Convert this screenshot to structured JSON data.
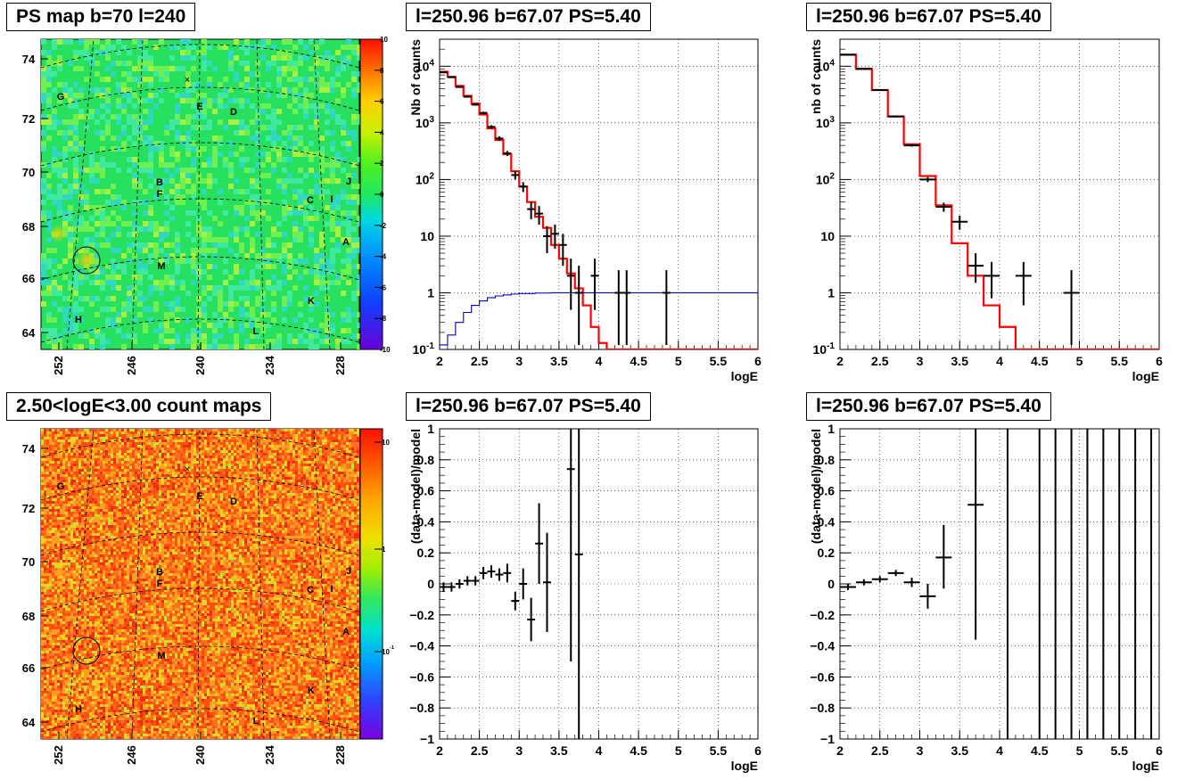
{
  "titles": {
    "map_top": "PS map b=70 l=240",
    "map_bottom": "2.50<logE<3.00 count maps",
    "spec1": "l=250.96 b=67.07 PS=5.40",
    "spec2": "l=250.96 b=67.07 PS=5.40",
    "res1": "l=250.96 b=67.07 PS=5.40",
    "res2": "l=250.96 b=67.07 PS=5.40"
  },
  "colors": {
    "data": "#000000",
    "model": "#ff0000",
    "exposure": "#0000cc",
    "grid": "#000000"
  },
  "map": {
    "lat_ticks": [
      "74",
      "72",
      "70",
      "68",
      "66",
      "64"
    ],
    "lon_ticks": [
      "252",
      "246",
      "240",
      "234",
      "228"
    ],
    "sources": [
      "G",
      "E",
      "D",
      "B",
      "F",
      "C",
      "I",
      "J",
      "A",
      "M",
      "K",
      "H",
      "L"
    ],
    "circle_label": "",
    "palette_top_ticks": [
      "10",
      "8",
      "6",
      "4",
      "2",
      "0",
      "-2",
      "-4",
      "-6",
      "-8",
      "-10"
    ],
    "palette_bottom_ticks": [
      "10",
      "1",
      "10^-1"
    ]
  },
  "chart_data": [
    {
      "type": "line",
      "panel": "spec1",
      "xlabel": "logE",
      "ylabel": "Nb of counts",
      "xlim": [
        2,
        6
      ],
      "ylim": [
        0.1,
        30000
      ],
      "yscale": "log",
      "grid": true,
      "xticks": [
        "2",
        "2.5",
        "3",
        "3.5",
        "4",
        "4.5",
        "5",
        "5.5",
        "6"
      ],
      "yticks": [
        "10^-1",
        "1",
        "10",
        "10^2",
        "10^3",
        "10^4"
      ],
      "series": [
        {
          "role": "model",
          "style": "step",
          "edges": [
            2,
            2.1,
            2.2,
            2.3,
            2.4,
            2.5,
            2.6,
            2.7,
            2.8,
            2.9,
            3.0,
            3.1,
            3.2,
            3.3,
            3.4,
            3.5,
            3.6,
            3.7,
            3.8,
            3.9,
            4.0,
            4.1,
            6.0
          ],
          "values": [
            8000,
            6500,
            4500,
            3000,
            2200,
            1400,
            800,
            500,
            280,
            140,
            75,
            40,
            22,
            14,
            7,
            4,
            2.2,
            1.2,
            0.6,
            0.25,
            0.13,
            0.1
          ]
        },
        {
          "role": "exposure",
          "style": "step",
          "edges": [
            2,
            2.1,
            2.2,
            2.3,
            2.4,
            2.5,
            2.6,
            2.7,
            2.8,
            2.9,
            3.0,
            3.2,
            3.4,
            6.0
          ],
          "values": [
            0.12,
            0.18,
            0.3,
            0.45,
            0.6,
            0.72,
            0.82,
            0.88,
            0.92,
            0.95,
            0.97,
            0.99,
            1.0
          ]
        },
        {
          "role": "data",
          "style": "errorbar",
          "x": [
            2.05,
            2.15,
            2.25,
            2.35,
            2.45,
            2.55,
            2.65,
            2.75,
            2.85,
            2.95,
            3.05,
            3.15,
            3.25,
            3.35,
            3.45,
            3.55,
            3.65,
            3.75,
            3.95,
            4.25,
            4.35,
            4.85
          ],
          "y": [
            7800,
            6400,
            4300,
            2900,
            2100,
            1500,
            850,
            530,
            290,
            120,
            75,
            30,
            25,
            10,
            11,
            7,
            2,
            1,
            2,
            1,
            1,
            1
          ],
          "ylo": [
            7650,
            6250,
            4170,
            2790,
            2010,
            1420,
            790,
            480,
            260,
            100,
            60,
            20,
            16,
            5,
            6,
            3,
            0.5,
            0.12,
            0.5,
            0.12,
            0.12,
            0.12
          ],
          "yhi": [
            7950,
            6550,
            4430,
            3010,
            2190,
            1580,
            910,
            580,
            320,
            140,
            90,
            40,
            34,
            15,
            16,
            11,
            4,
            3,
            4,
            2.5,
            2.5,
            2.5
          ],
          "xerr": 0.05
        }
      ]
    },
    {
      "type": "line",
      "panel": "spec2",
      "xlabel": "logE",
      "ylabel": "nb of counts",
      "xlim": [
        2,
        6
      ],
      "ylim": [
        0.1,
        30000
      ],
      "yscale": "log",
      "grid": true,
      "xticks": [
        "2",
        "2.5",
        "3",
        "3.5",
        "4",
        "4.5",
        "5",
        "5.5",
        "6"
      ],
      "yticks": [
        "10^-1",
        "1",
        "10",
        "10^2",
        "10^3",
        "10^4"
      ],
      "series": [
        {
          "role": "model",
          "style": "step",
          "edges": [
            2,
            2.2,
            2.4,
            2.6,
            2.8,
            3.0,
            3.2,
            3.4,
            3.6,
            3.8,
            4.0,
            4.2,
            6.0
          ],
          "values": [
            16000,
            9000,
            3800,
            1300,
            420,
            115,
            35,
            7.5,
            2,
            0.6,
            0.25,
            0.1
          ]
        },
        {
          "role": "data",
          "style": "errorbar",
          "x": [
            2.1,
            2.3,
            2.5,
            2.7,
            2.9,
            3.1,
            3.3,
            3.5,
            3.7,
            3.9,
            4.3,
            4.9
          ],
          "y": [
            16000,
            9000,
            3800,
            1300,
            400,
            100,
            33,
            18,
            3,
            2,
            2,
            1
          ],
          "ylo": [
            15800,
            8800,
            3700,
            1250,
            380,
            90,
            27,
            13,
            1.5,
            0.8,
            0.6,
            0.12
          ],
          "yhi": [
            16200,
            9200,
            3900,
            1350,
            420,
            110,
            39,
            23,
            5,
            3.5,
            3.5,
            2.5
          ],
          "xerr": 0.1
        }
      ]
    },
    {
      "type": "scatter",
      "panel": "res1",
      "xlabel": "logE",
      "ylabel": "(data-model)/model",
      "xlim": [
        2,
        6
      ],
      "ylim": [
        -1,
        1
      ],
      "grid": true,
      "xticks": [
        "2",
        "2.5",
        "3",
        "3.5",
        "4",
        "4.5",
        "5",
        "5.5",
        "6"
      ],
      "yticks": [
        "-1",
        "-0.8",
        "-0.6",
        "-0.4",
        "-0.2",
        "0",
        "0.2",
        "0.4",
        "0.6",
        "0.8",
        "1"
      ],
      "series": [
        {
          "role": "data",
          "style": "errorbar",
          "x": [
            2.05,
            2.15,
            2.25,
            2.35,
            2.45,
            2.55,
            2.65,
            2.75,
            2.85,
            2.95,
            3.05,
            3.15,
            3.25,
            3.35,
            3.65,
            3.75
          ],
          "y": [
            -0.02,
            -0.02,
            0.0,
            0.02,
            0.02,
            0.07,
            0.08,
            0.06,
            0.07,
            -0.11,
            0.0,
            -0.23,
            0.26,
            0.01,
            0.74,
            0.19
          ],
          "ylo": [
            -0.05,
            -0.05,
            -0.03,
            -0.01,
            -0.01,
            0.03,
            0.04,
            0.02,
            0.01,
            -0.17,
            -0.1,
            -0.37,
            0.0,
            -0.31,
            -0.5,
            -1.0
          ],
          "yhi": [
            0.01,
            0.01,
            0.03,
            0.05,
            0.05,
            0.11,
            0.12,
            0.1,
            0.13,
            -0.05,
            0.1,
            -0.09,
            0.52,
            0.33,
            1.0,
            1.0
          ],
          "xerr": 0.05
        }
      ]
    },
    {
      "type": "scatter",
      "panel": "res2",
      "xlabel": "logE",
      "ylabel": "(data-model)/model",
      "xlim": [
        2,
        6
      ],
      "ylim": [
        -1,
        1
      ],
      "grid": true,
      "xticks": [
        "2",
        "2.5",
        "3",
        "3.5",
        "4",
        "4.5",
        "5",
        "5.5",
        "6"
      ],
      "yticks": [
        "-1",
        "-0.8",
        "-0.6",
        "-0.4",
        "-0.2",
        "0",
        "0.2",
        "0.4",
        "0.6",
        "0.8",
        "1"
      ],
      "series": [
        {
          "role": "data",
          "style": "errorbar",
          "x": [
            2.1,
            2.3,
            2.5,
            2.7,
            2.9,
            3.1,
            3.3,
            3.7,
            4.1,
            4.5,
            4.7,
            4.9,
            5.1,
            5.3,
            5.5,
            5.7,
            5.9
          ],
          "y": [
            -0.02,
            0.01,
            0.03,
            0.07,
            0.01,
            -0.08,
            0.17,
            0.51,
            0,
            0,
            0,
            0,
            0,
            0,
            0,
            0,
            0
          ],
          "ylo": [
            -0.04,
            -0.01,
            0.01,
            0.05,
            -0.02,
            -0.16,
            -0.03,
            -0.36,
            -1,
            -1,
            -1,
            -1,
            -1,
            -1,
            -1,
            -1,
            -1
          ],
          "yhi": [
            0.0,
            0.03,
            0.05,
            0.09,
            0.04,
            0.0,
            0.38,
            1.0,
            1,
            1,
            1,
            1,
            1,
            1,
            1,
            1,
            1
          ],
          "xerr": 0.1,
          "marker_hidden_from_index": 8
        }
      ]
    }
  ]
}
